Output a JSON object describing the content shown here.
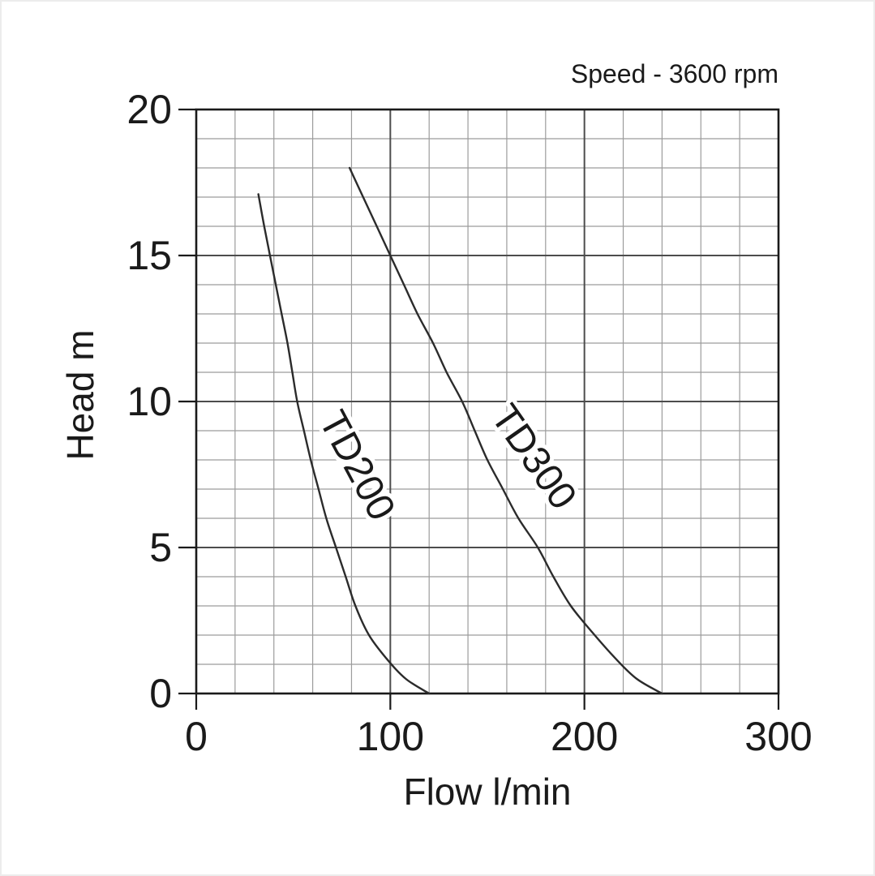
{
  "annotation": "Speed - 3600 rpm",
  "colors": {
    "text": "#1a1a1a",
    "curve": "#2b2b2b",
    "grid_major": "#4d4d4d",
    "grid_minor": "#9c9c9c",
    "border": "#1a1a1a",
    "background": "#ffffff"
  },
  "chart_data": {
    "type": "line",
    "title": "",
    "annotation": "Speed - 3600 rpm",
    "xlabel": "Flow l/min",
    "ylabel": "Head m",
    "xlim": [
      0,
      300
    ],
    "ylim": [
      0,
      20
    ],
    "x_major_ticks": [
      0,
      100,
      200,
      300
    ],
    "y_major_ticks": [
      0,
      5,
      10,
      15,
      20
    ],
    "x_minor_step": 20,
    "y_minor_step": 1,
    "grid": "on (minor + major)",
    "legend_position": "labels-on-curves",
    "series": [
      {
        "name": "TD200",
        "points": [
          [
            32,
            17.1
          ],
          [
            35,
            16
          ],
          [
            38,
            15
          ],
          [
            41,
            14
          ],
          [
            44,
            13
          ],
          [
            47,
            12
          ],
          [
            49.5,
            11
          ],
          [
            52,
            10
          ],
          [
            55.5,
            9
          ],
          [
            59,
            8
          ],
          [
            63,
            7
          ],
          [
            67,
            6
          ],
          [
            72,
            5
          ],
          [
            77,
            4
          ],
          [
            82,
            3
          ],
          [
            89,
            2
          ],
          [
            98,
            1.2
          ],
          [
            108,
            0.5
          ],
          [
            120,
            0
          ]
        ],
        "label_at": [
          77,
          7.6
        ],
        "label_rotation": 62
      },
      {
        "name": "TD300",
        "points": [
          [
            79,
            18
          ],
          [
            86,
            17
          ],
          [
            93,
            16
          ],
          [
            100,
            15
          ],
          [
            107,
            14
          ],
          [
            114,
            13
          ],
          [
            122,
            12
          ],
          [
            129,
            11
          ],
          [
            137,
            10
          ],
          [
            143.5,
            9
          ],
          [
            150,
            8
          ],
          [
            158,
            7
          ],
          [
            166,
            6
          ],
          [
            176,
            5
          ],
          [
            184,
            4
          ],
          [
            193,
            3
          ],
          [
            204,
            2.1
          ],
          [
            216,
            1.2
          ],
          [
            227,
            0.5
          ],
          [
            240,
            0
          ]
        ],
        "label_at": [
          168.5,
          7.85
        ],
        "label_rotation": 55
      }
    ]
  }
}
